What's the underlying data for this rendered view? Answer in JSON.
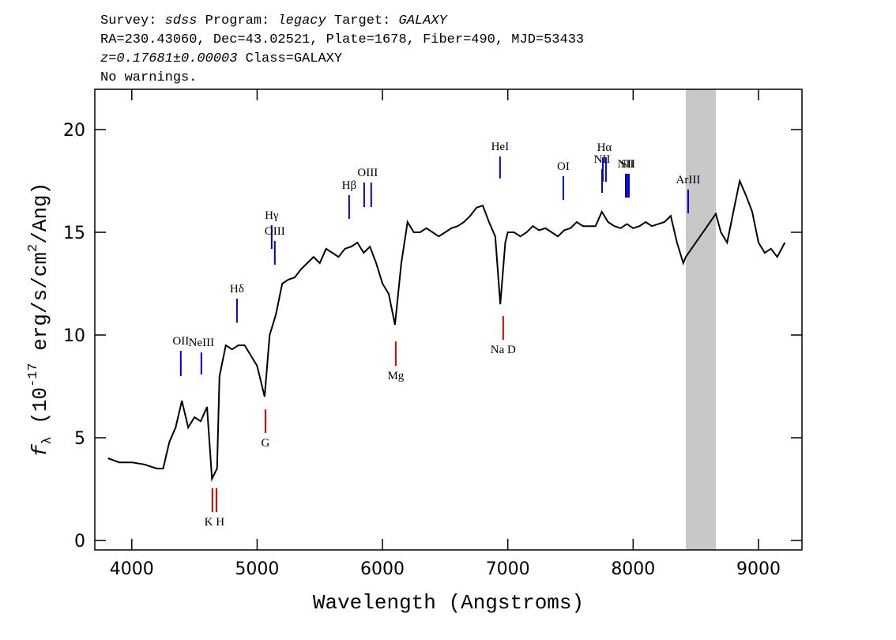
{
  "chart_data": {
    "type": "line",
    "header": [
      [
        {
          "text": "Survey: ",
          "italic": false
        },
        {
          "text": "sdss",
          "italic": true
        },
        {
          "text": " Program: ",
          "italic": false
        },
        {
          "text": "legacy",
          "italic": true
        },
        {
          "text": " Target: ",
          "italic": false
        },
        {
          "text": "GALAXY",
          "italic": true
        }
      ],
      [
        {
          "text": "RA=230.43060, Dec=43.02521, Plate=1678, Fiber=490, MJD=53433",
          "italic": false
        }
      ],
      [
        {
          "text": "z=0.17681±0.00003",
          "italic": true
        },
        {
          "text": " Class=GALAXY",
          "italic": false
        }
      ],
      [
        {
          "text": "No warnings.",
          "italic": false
        }
      ]
    ],
    "xlabel": "Wavelength (Angstroms)",
    "ylabel": [
      {
        "text": "f",
        "style": "italic"
      },
      {
        "text": "λ",
        "style": "sub"
      },
      {
        "text": " (10",
        "style": "normal"
      },
      {
        "text": "-17",
        "style": "sup"
      },
      {
        "text": " erg/s/cm",
        "style": "normal"
      },
      {
        "text": "2",
        "style": "sup"
      },
      {
        "text": "/Ang)",
        "style": "normal"
      }
    ],
    "xlim": [
      3705,
      9347
    ],
    "ylim": [
      -0.46,
      21.96
    ],
    "xticks": [
      4000,
      5000,
      6000,
      7000,
      8000,
      9000
    ],
    "yticks": [
      0,
      5,
      10,
      15,
      20
    ],
    "color": "#000000",
    "masked_region": [
      8420,
      8660
    ],
    "masked_color": "#c8c8c8",
    "x": [
      3810,
      3900,
      4000,
      4100,
      4200,
      4250,
      4300,
      4350,
      4400,
      4450,
      4500,
      4550,
      4600,
      4640,
      4680,
      4700,
      4750,
      4800,
      4850,
      4900,
      4950,
      5000,
      5060,
      5100,
      5150,
      5200,
      5250,
      5300,
      5350,
      5400,
      5450,
      5500,
      5550,
      5600,
      5650,
      5700,
      5750,
      5800,
      5850,
      5900,
      5950,
      6000,
      6050,
      6100,
      6150,
      6200,
      6250,
      6300,
      6350,
      6400,
      6450,
      6500,
      6550,
      6600,
      6650,
      6700,
      6750,
      6800,
      6850,
      6900,
      6940,
      6980,
      7000,
      7050,
      7100,
      7150,
      7200,
      7250,
      7300,
      7350,
      7400,
      7450,
      7500,
      7550,
      7600,
      7650,
      7700,
      7750,
      7800,
      7850,
      7900,
      7950,
      8000,
      8050,
      8100,
      8150,
      8200,
      8250,
      8300,
      8350,
      8400,
      8420,
      8660,
      8700,
      8750,
      8800,
      8850,
      8900,
      8950,
      9000,
      9050,
      9100,
      9150,
      9210
    ],
    "values": [
      4,
      3.8,
      3.8,
      3.7,
      3.5,
      3.5,
      4.8,
      5.5,
      6.8,
      5.5,
      6,
      5.8,
      6.5,
      3,
      3.5,
      8,
      9.5,
      9.3,
      9.5,
      9.5,
      9,
      8.5,
      7,
      10,
      11,
      12.5,
      12.7,
      12.8,
      13.2,
      13.5,
      13.8,
      13.5,
      14.2,
      14,
      13.8,
      14.2,
      14.3,
      14.5,
      14,
      14.3,
      13.5,
      12.5,
      12,
      10.5,
      13.5,
      15.5,
      15,
      15,
      15.2,
      15,
      14.8,
      15,
      15.2,
      15.3,
      15.5,
      15.8,
      16.2,
      16.3,
      15.5,
      14.8,
      11.5,
      14.5,
      15,
      15,
      14.8,
      15,
      15.3,
      15.1,
      15.2,
      15,
      14.8,
      15.1,
      15.2,
      15.5,
      15.3,
      15.3,
      15.3,
      16,
      15.5,
      15.3,
      15.2,
      15.4,
      15.2,
      15.3,
      15.5,
      15.3,
      15.4,
      15.5,
      15.8,
      14.5,
      13.5,
      13.8,
      15.9,
      15,
      14.5,
      16,
      17.5,
      16.8,
      16,
      14.5,
      14,
      14.2,
      13.8,
      14.5
    ],
    "lines": [
      {
        "label": "OII",
        "x": [
          4391
        ],
        "y": [
          8.0,
          9.23
        ],
        "color": "#0000cc",
        "pos": "above"
      },
      {
        "label": "NeIII",
        "x": [
          4555
        ],
        "y": [
          8.08,
          9.15
        ],
        "color": "#0000cc",
        "pos": "above"
      },
      {
        "label": "Hδ",
        "x": [
          4839
        ],
        "y": [
          10.6,
          11.77
        ],
        "color": "#0000cc",
        "pos": "above"
      },
      {
        "label": "Hγ",
        "x": [
          5116
        ],
        "y": [
          14.19,
          15.35
        ],
        "color": "#0000cc",
        "pos": "above"
      },
      {
        "label": "OIII",
        "x": [
          5141
        ],
        "y": [
          13.42,
          14.58
        ],
        "color": "#0000cc",
        "pos": "above"
      },
      {
        "label": "Hβ",
        "x": [
          5734
        ],
        "y": [
          15.65,
          16.81
        ],
        "color": "#0000cc",
        "pos": "above"
      },
      {
        "label": "OIII",
        "x": [
          5854,
          5910
        ],
        "y": [
          16.23,
          17.42
        ],
        "color": "#0000cc",
        "pos": "above"
      },
      {
        "label": "HeI",
        "x": [
          6938
        ],
        "y": [
          17.62,
          18.69
        ],
        "color": "#0000cc",
        "pos": "above"
      },
      {
        "label": "OI",
        "x": [
          7443
        ],
        "y": [
          16.58,
          17.73
        ],
        "color": "#0000cc",
        "pos": "above"
      },
      {
        "label": "NII",
        "x": [
          7752
        ],
        "y": [
          16.92,
          18.08
        ],
        "color": "#0000cc",
        "pos": "above"
      },
      {
        "label": "Hα",
        "x": [
          7758,
          7783
        ],
        "y": [
          17.46,
          18.65
        ],
        "color": "#0000cc",
        "pos": "above"
      },
      {
        "label": "NII",
        "x": [
          7941
        ],
        "y": [
          16.69,
          17.85
        ],
        "color": "#0000cc",
        "pos": "above"
      },
      {
        "label": "SII",
        "x": [
          7953,
          7966
        ],
        "y": [
          16.69,
          17.85
        ],
        "color": "#0000cc",
        "pos": "above"
      },
      {
        "label": "ArIII",
        "x": [
          8439
        ],
        "y": [
          15.92,
          17.08
        ],
        "color": "#0000cc",
        "pos": "above"
      },
      {
        "label": "K H",
        "x": [
          4643,
          4675
        ],
        "y": [
          1.38,
          2.54
        ],
        "color": "#cc0000",
        "pos": "below"
      },
      {
        "label": "G",
        "x": [
          5066
        ],
        "y": [
          5.23,
          6.38
        ],
        "color": "#cc0000",
        "pos": "below"
      },
      {
        "label": "Mg",
        "x": [
          6106
        ],
        "y": [
          8.5,
          9.69
        ],
        "color": "#cc0000",
        "pos": "below"
      },
      {
        "label": "Na D",
        "x": [
          6963
        ],
        "y": [
          9.77,
          10.92
        ],
        "color": "#cc0000",
        "pos": "below"
      }
    ]
  }
}
